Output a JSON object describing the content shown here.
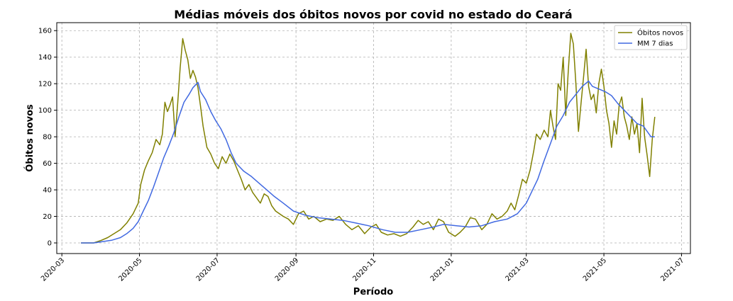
{
  "chart_data": {
    "type": "line",
    "title": "Médias móveis dos óbitos novos por covid no estado do Ceará",
    "xlabel": "Período",
    "ylabel": "Óbitos novos",
    "x_range": [
      "2020-02-26",
      "2021-07-08"
    ],
    "ylim": [
      -8,
      166
    ],
    "y_ticks": [
      0,
      20,
      40,
      60,
      80,
      100,
      120,
      140,
      160
    ],
    "x_ticks": [
      "2020-03",
      "2020-05",
      "2020-07",
      "2020-09",
      "2020-11",
      "2021-01",
      "2021-03",
      "2021-05",
      "2021-07"
    ],
    "grid": true,
    "legend_position": "top-right",
    "series": [
      {
        "name": "Óbitos novos",
        "color": "#808000",
        "points": [
          [
            "2020-03-16",
            0
          ],
          [
            "2020-03-26",
            0
          ],
          [
            "2020-04-01",
            2
          ],
          [
            "2020-04-06",
            4
          ],
          [
            "2020-04-11",
            7
          ],
          [
            "2020-04-16",
            10
          ],
          [
            "2020-04-21",
            15
          ],
          [
            "2020-04-26",
            22
          ],
          [
            "2020-04-30",
            30
          ],
          [
            "2020-05-02",
            44
          ],
          [
            "2020-05-05",
            55
          ],
          [
            "2020-05-08",
            62
          ],
          [
            "2020-05-11",
            68
          ],
          [
            "2020-05-14",
            78
          ],
          [
            "2020-05-17",
            74
          ],
          [
            "2020-05-19",
            82
          ],
          [
            "2020-05-21",
            106
          ],
          [
            "2020-05-23",
            99
          ],
          [
            "2020-05-25",
            104
          ],
          [
            "2020-05-27",
            110
          ],
          [
            "2020-05-29",
            80
          ],
          [
            "2020-05-31",
            105
          ],
          [
            "2020-06-02",
            132
          ],
          [
            "2020-06-04",
            154
          ],
          [
            "2020-06-06",
            145
          ],
          [
            "2020-06-08",
            138
          ],
          [
            "2020-06-10",
            124
          ],
          [
            "2020-06-12",
            130
          ],
          [
            "2020-06-14",
            125
          ],
          [
            "2020-06-16",
            117
          ],
          [
            "2020-06-18",
            103
          ],
          [
            "2020-06-20",
            88
          ],
          [
            "2020-06-23",
            72
          ],
          [
            "2020-06-26",
            67
          ],
          [
            "2020-06-29",
            60
          ],
          [
            "2020-07-02",
            56
          ],
          [
            "2020-07-05",
            65
          ],
          [
            "2020-07-08",
            60
          ],
          [
            "2020-07-11",
            67
          ],
          [
            "2020-07-14",
            62
          ],
          [
            "2020-07-17",
            55
          ],
          [
            "2020-07-20",
            48
          ],
          [
            "2020-07-23",
            40
          ],
          [
            "2020-07-26",
            44
          ],
          [
            "2020-07-29",
            38
          ],
          [
            "2020-08-01",
            34
          ],
          [
            "2020-08-04",
            30
          ],
          [
            "2020-08-07",
            37
          ],
          [
            "2020-08-10",
            35
          ],
          [
            "2020-08-13",
            28
          ],
          [
            "2020-08-16",
            24
          ],
          [
            "2020-08-19",
            22
          ],
          [
            "2020-08-22",
            20
          ],
          [
            "2020-08-26",
            18
          ],
          [
            "2020-08-30",
            14
          ],
          [
            "2020-09-03",
            22
          ],
          [
            "2020-09-07",
            24
          ],
          [
            "2020-09-11",
            18
          ],
          [
            "2020-09-15",
            20
          ],
          [
            "2020-09-20",
            16
          ],
          [
            "2020-09-25",
            18
          ],
          [
            "2020-09-30",
            17
          ],
          [
            "2020-10-05",
            20
          ],
          [
            "2020-10-10",
            14
          ],
          [
            "2020-10-15",
            10
          ],
          [
            "2020-10-20",
            13
          ],
          [
            "2020-10-25",
            7
          ],
          [
            "2020-10-30",
            12
          ],
          [
            "2020-11-03",
            14
          ],
          [
            "2020-11-07",
            8
          ],
          [
            "2020-11-12",
            6
          ],
          [
            "2020-11-17",
            7
          ],
          [
            "2020-11-22",
            5
          ],
          [
            "2020-11-27",
            7
          ],
          [
            "2020-12-02",
            12
          ],
          [
            "2020-12-06",
            17
          ],
          [
            "2020-12-10",
            14
          ],
          [
            "2020-12-14",
            16
          ],
          [
            "2020-12-18",
            10
          ],
          [
            "2020-12-22",
            18
          ],
          [
            "2020-12-26",
            16
          ],
          [
            "2020-12-30",
            8
          ],
          [
            "2021-01-04",
            5
          ],
          [
            "2021-01-08",
            8
          ],
          [
            "2021-01-12",
            12
          ],
          [
            "2021-01-16",
            19
          ],
          [
            "2021-01-20",
            18
          ],
          [
            "2021-01-25",
            10
          ],
          [
            "2021-01-29",
            14
          ],
          [
            "2021-02-02",
            22
          ],
          [
            "2021-02-06",
            18
          ],
          [
            "2021-02-10",
            20
          ],
          [
            "2021-02-14",
            24
          ],
          [
            "2021-02-17",
            30
          ],
          [
            "2021-02-20",
            25
          ],
          [
            "2021-02-23",
            36
          ],
          [
            "2021-02-26",
            48
          ],
          [
            "2021-03-01",
            45
          ],
          [
            "2021-03-04",
            55
          ],
          [
            "2021-03-07",
            70
          ],
          [
            "2021-03-09",
            82
          ],
          [
            "2021-03-12",
            78
          ],
          [
            "2021-03-15",
            85
          ],
          [
            "2021-03-18",
            80
          ],
          [
            "2021-03-20",
            100
          ],
          [
            "2021-03-22",
            88
          ],
          [
            "2021-03-24",
            78
          ],
          [
            "2021-03-26",
            120
          ],
          [
            "2021-03-28",
            115
          ],
          [
            "2021-03-30",
            140
          ],
          [
            "2021-04-01",
            96
          ],
          [
            "2021-04-03",
            130
          ],
          [
            "2021-04-05",
            158
          ],
          [
            "2021-04-07",
            150
          ],
          [
            "2021-04-09",
            120
          ],
          [
            "2021-04-11",
            84
          ],
          [
            "2021-04-13",
            105
          ],
          [
            "2021-04-15",
            125
          ],
          [
            "2021-04-17",
            146
          ],
          [
            "2021-04-19",
            118
          ],
          [
            "2021-04-21",
            108
          ],
          [
            "2021-04-23",
            112
          ],
          [
            "2021-04-25",
            98
          ],
          [
            "2021-04-27",
            120
          ],
          [
            "2021-04-29",
            131
          ],
          [
            "2021-05-01",
            118
          ],
          [
            "2021-05-03",
            100
          ],
          [
            "2021-05-05",
            90
          ],
          [
            "2021-05-07",
            72
          ],
          [
            "2021-05-09",
            92
          ],
          [
            "2021-05-11",
            82
          ],
          [
            "2021-05-13",
            104
          ],
          [
            "2021-05-15",
            110
          ],
          [
            "2021-05-17",
            95
          ],
          [
            "2021-05-19",
            88
          ],
          [
            "2021-05-21",
            78
          ],
          [
            "2021-05-23",
            95
          ],
          [
            "2021-05-25",
            82
          ],
          [
            "2021-05-27",
            90
          ],
          [
            "2021-05-29",
            68
          ],
          [
            "2021-05-31",
            109
          ],
          [
            "2021-06-02",
            80
          ],
          [
            "2021-06-04",
            66
          ],
          [
            "2021-06-06",
            50
          ],
          [
            "2021-06-08",
            78
          ],
          [
            "2021-06-10",
            95
          ]
        ]
      },
      {
        "name": "MM 7 dias",
        "color": "#4169E1",
        "points": [
          [
            "2020-03-16",
            0
          ],
          [
            "2020-03-26",
            0
          ],
          [
            "2020-04-02",
            1
          ],
          [
            "2020-04-09",
            2
          ],
          [
            "2020-04-16",
            4
          ],
          [
            "2020-04-21",
            7
          ],
          [
            "2020-04-26",
            11
          ],
          [
            "2020-04-30",
            16
          ],
          [
            "2020-05-04",
            24
          ],
          [
            "2020-05-08",
            32
          ],
          [
            "2020-05-12",
            42
          ],
          [
            "2020-05-16",
            53
          ],
          [
            "2020-05-20",
            64
          ],
          [
            "2020-05-24",
            73
          ],
          [
            "2020-05-28",
            83
          ],
          [
            "2020-06-01",
            95
          ],
          [
            "2020-06-05",
            106
          ],
          [
            "2020-06-09",
            112
          ],
          [
            "2020-06-12",
            117
          ],
          [
            "2020-06-16",
            121
          ],
          [
            "2020-06-18",
            114
          ],
          [
            "2020-06-22",
            108
          ],
          [
            "2020-06-26",
            99
          ],
          [
            "2020-06-30",
            92
          ],
          [
            "2020-07-04",
            86
          ],
          [
            "2020-07-08",
            78
          ],
          [
            "2020-07-12",
            68
          ],
          [
            "2020-07-16",
            60
          ],
          [
            "2020-07-22",
            54
          ],
          [
            "2020-07-28",
            50
          ],
          [
            "2020-08-03",
            45
          ],
          [
            "2020-08-09",
            40
          ],
          [
            "2020-08-15",
            35
          ],
          [
            "2020-08-22",
            30
          ],
          [
            "2020-08-30",
            24
          ],
          [
            "2020-09-08",
            21
          ],
          [
            "2020-09-18",
            19
          ],
          [
            "2020-09-28",
            18
          ],
          [
            "2020-10-08",
            17
          ],
          [
            "2020-10-18",
            15
          ],
          [
            "2020-10-28",
            13
          ],
          [
            "2020-11-08",
            10
          ],
          [
            "2020-11-18",
            8
          ],
          [
            "2020-11-28",
            8
          ],
          [
            "2020-12-08",
            10
          ],
          [
            "2020-12-18",
            12
          ],
          [
            "2020-12-26",
            14
          ],
          [
            "2021-01-05",
            13
          ],
          [
            "2021-01-15",
            12
          ],
          [
            "2021-01-25",
            13
          ],
          [
            "2021-02-04",
            16
          ],
          [
            "2021-02-14",
            18
          ],
          [
            "2021-02-22",
            22
          ],
          [
            "2021-03-01",
            30
          ],
          [
            "2021-03-06",
            40
          ],
          [
            "2021-03-10",
            48
          ],
          [
            "2021-03-15",
            62
          ],
          [
            "2021-03-20",
            75
          ],
          [
            "2021-03-25",
            88
          ],
          [
            "2021-03-30",
            96
          ],
          [
            "2021-04-04",
            106
          ],
          [
            "2021-04-09",
            112
          ],
          [
            "2021-04-14",
            118
          ],
          [
            "2021-04-19",
            122
          ],
          [
            "2021-04-22",
            118
          ],
          [
            "2021-04-27",
            116
          ],
          [
            "2021-05-02",
            114
          ],
          [
            "2021-05-07",
            111
          ],
          [
            "2021-05-12",
            105
          ],
          [
            "2021-05-17",
            100
          ],
          [
            "2021-05-22",
            95
          ],
          [
            "2021-05-27",
            90
          ],
          [
            "2021-06-01",
            88
          ],
          [
            "2021-06-04",
            84
          ],
          [
            "2021-06-07",
            80
          ],
          [
            "2021-06-10",
            80
          ]
        ]
      }
    ]
  }
}
